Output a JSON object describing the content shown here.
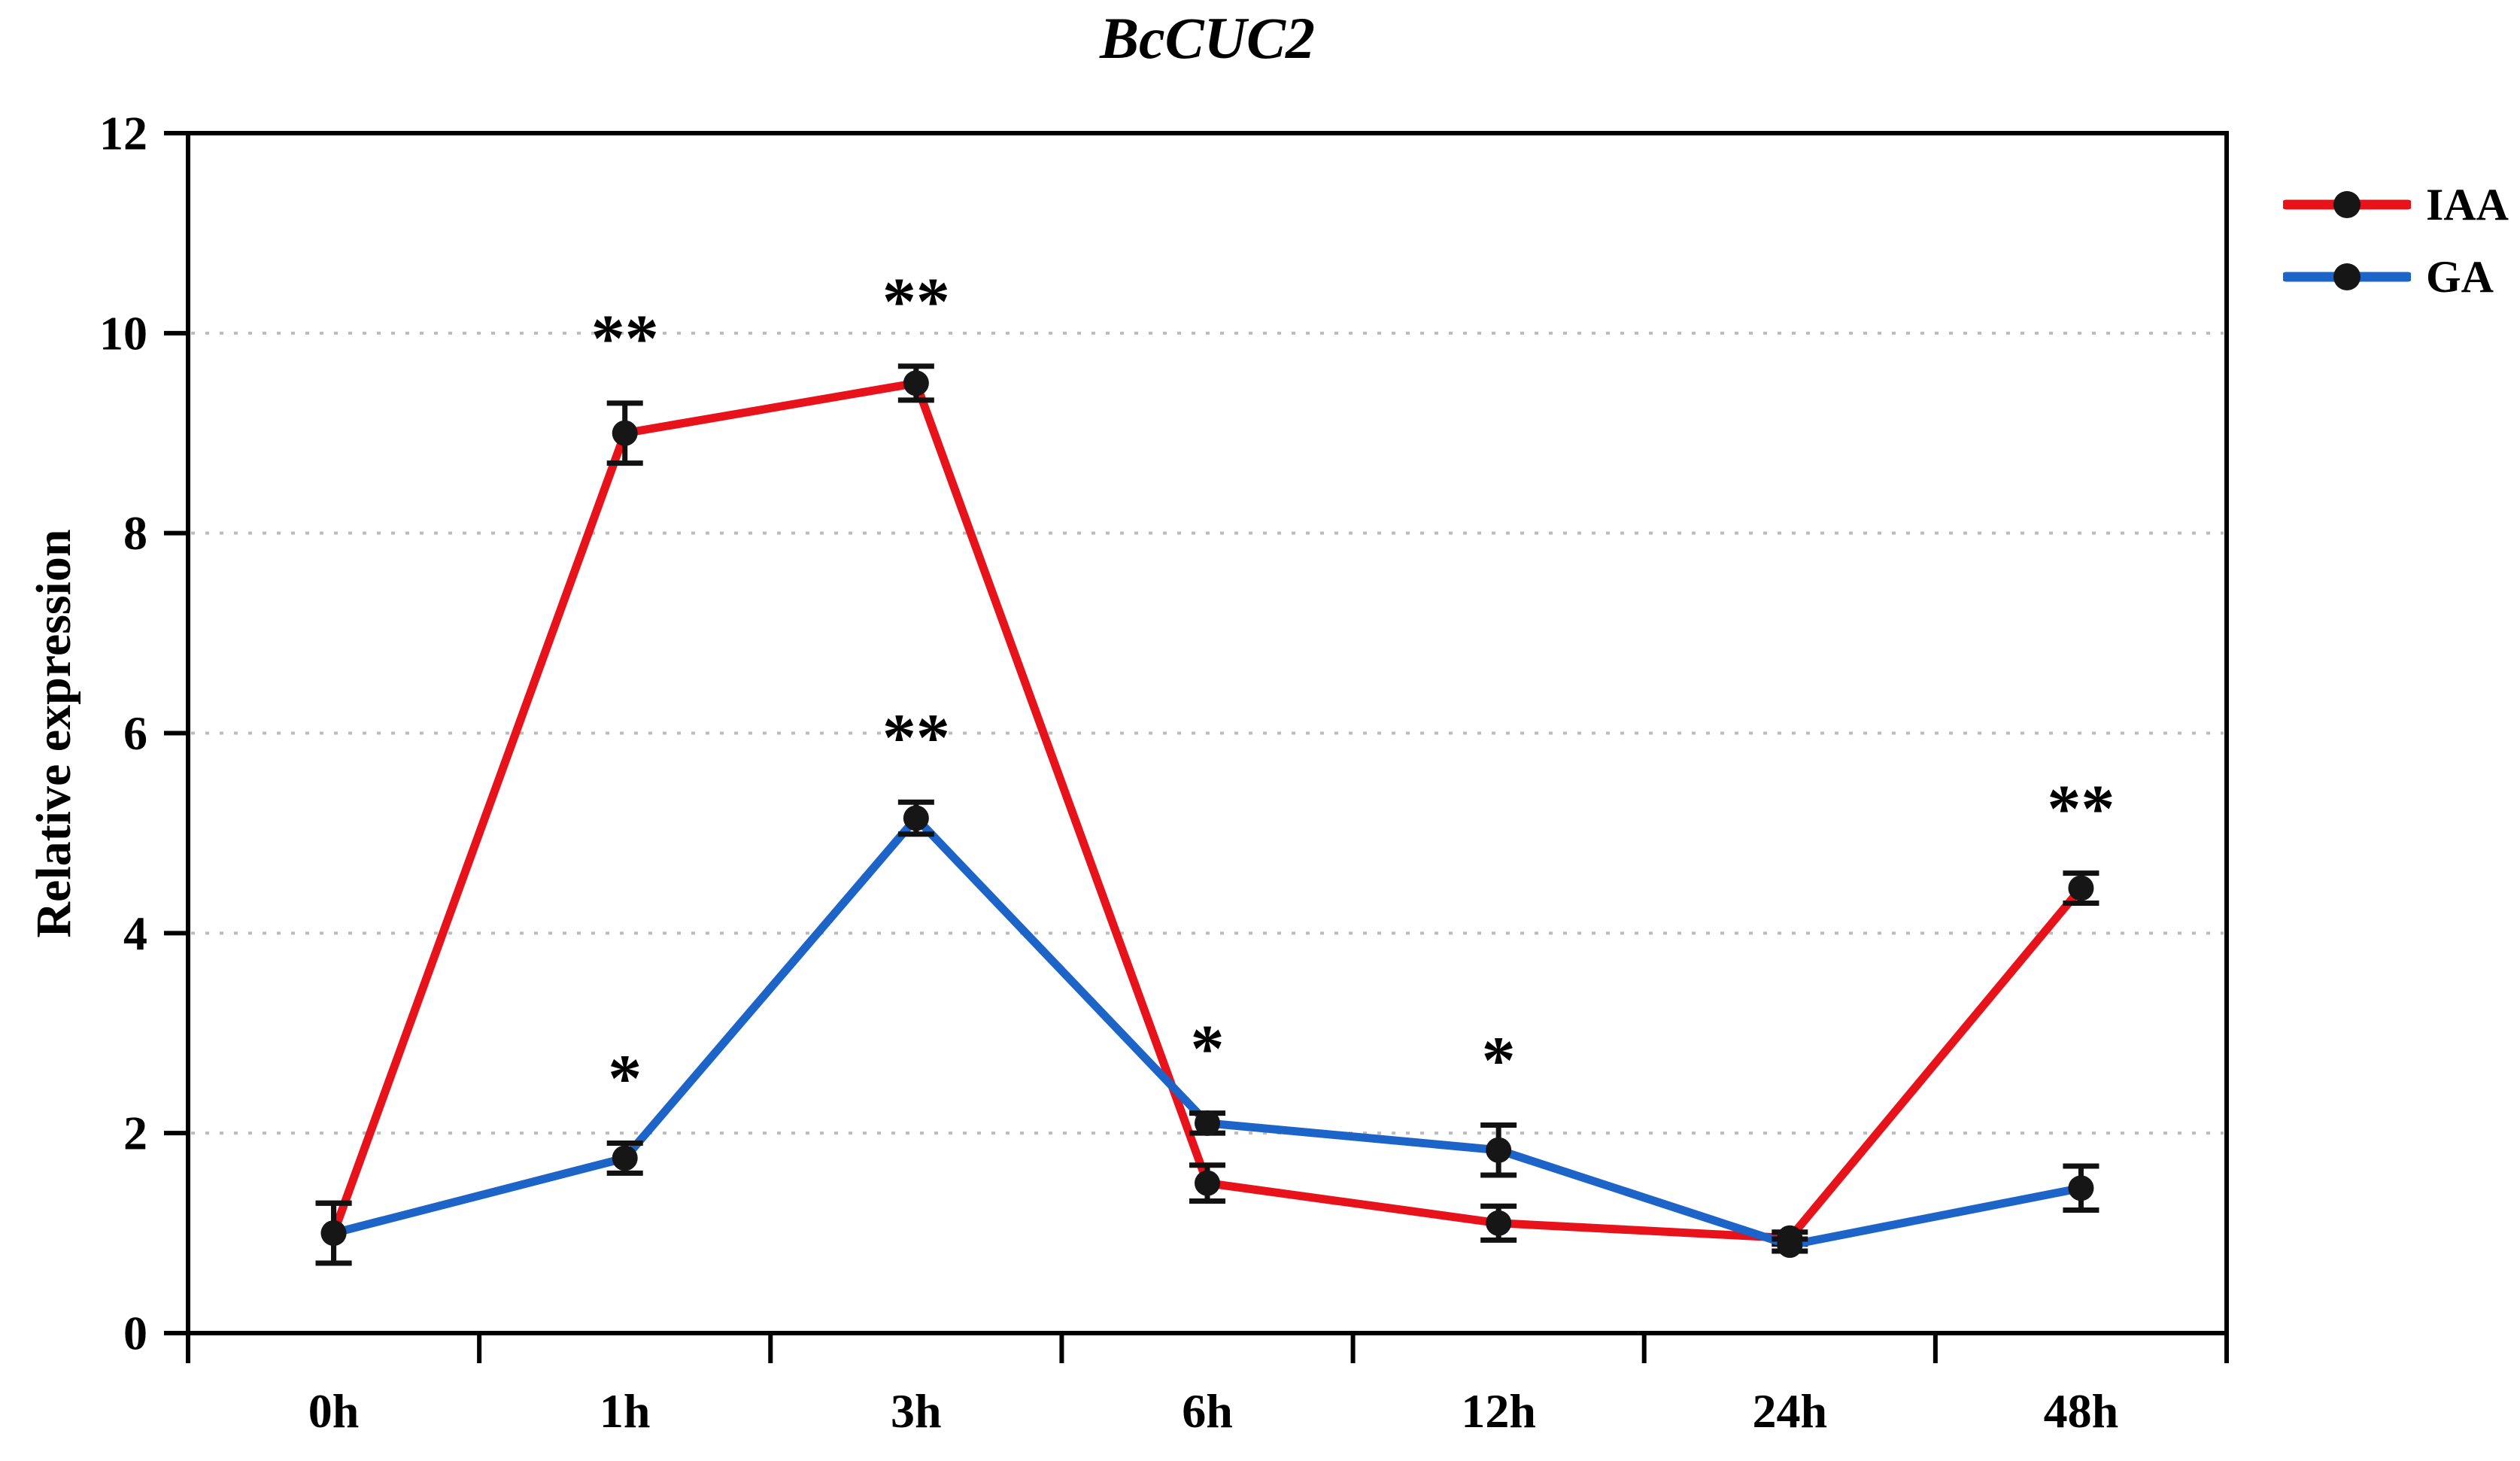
{
  "figure": {
    "background_color": "#ffffff",
    "axis_color": "#000000",
    "gridline_color": "#bcbcbc",
    "marker_color": "#161616",
    "error_bar_color": "#111111"
  },
  "chart_data": {
    "type": "line",
    "title": "BcCUC2",
    "xlabel": "",
    "ylabel": "Relative expression",
    "categories": [
      "0h",
      "1h",
      "3h",
      "6h",
      "12h",
      "24h",
      "48h"
    ],
    "ylim": [
      0,
      12
    ],
    "yticks": [
      0,
      2,
      4,
      6,
      8,
      10,
      12
    ],
    "grid": "horizontal dotted gridlines at 2,4,6,8,10; full black frame around plot",
    "legend_position": "outside upper right",
    "marker": "filled black circle on both series",
    "error_bars": "plus-minus with caps, black",
    "significance_note": "asterisks above points: * p<0.05, ** p<0.01",
    "series": [
      {
        "name": "IAA",
        "color": "#e8121b",
        "values": [
          1.0,
          9.0,
          9.5,
          1.5,
          1.1,
          0.95,
          4.45
        ],
        "errors": [
          0.3,
          0.3,
          0.17,
          0.18,
          0.17,
          0.06,
          0.15
        ],
        "significance": [
          "",
          "**",
          "**",
          "",
          "",
          "",
          "**"
        ]
      },
      {
        "name": "GA",
        "color": "#1c64c8",
        "values": [
          1.0,
          1.75,
          5.15,
          2.1,
          1.83,
          0.88,
          1.45
        ],
        "errors": [
          0.3,
          0.15,
          0.16,
          0.1,
          0.25,
          0.06,
          0.22
        ],
        "significance": [
          "",
          "*",
          "**",
          "*",
          "*",
          "",
          ""
        ]
      }
    ]
  }
}
